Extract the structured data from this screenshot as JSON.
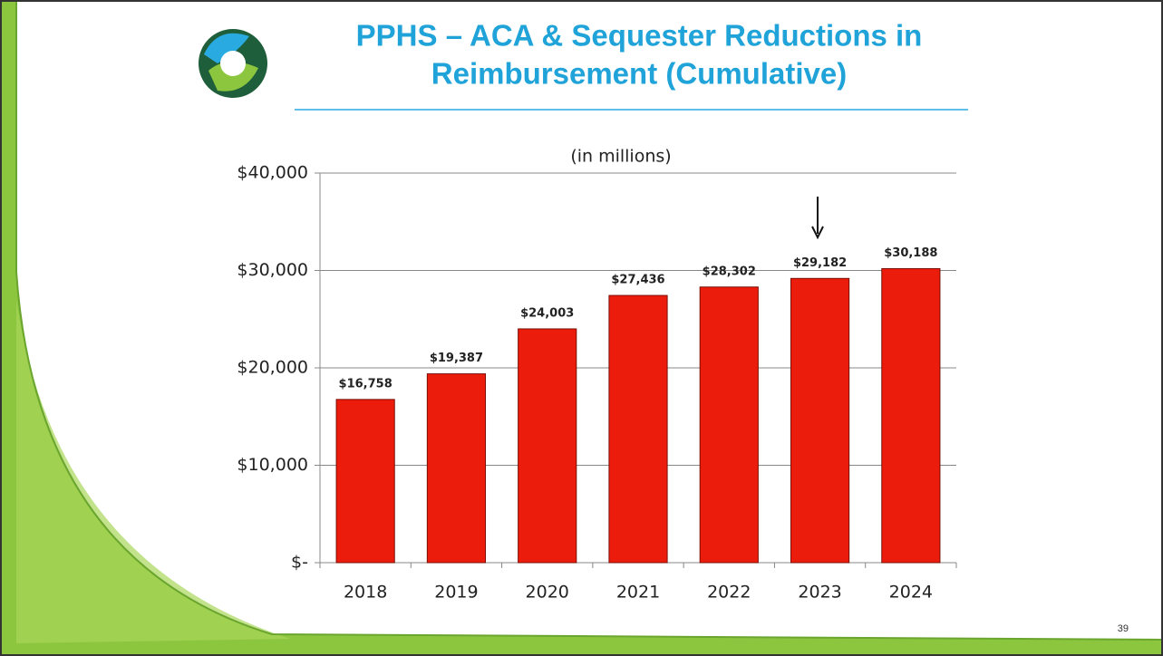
{
  "chart_data": {
    "type": "bar",
    "title": [
      "PPHS – ACA & Sequester Reductions in",
      "Reimbursement (Cumulative)"
    ],
    "subtitle": "(in millions)",
    "categories": [
      "2018",
      "2019",
      "2020",
      "2021",
      "2022",
      "2023",
      "2024"
    ],
    "values": [
      16758,
      19387,
      24003,
      27436,
      28302,
      29182,
      30188
    ],
    "value_labels": [
      "$16,758",
      "$19,387",
      "$24,003",
      "$27,436",
      "$28,302",
      "$29,182",
      "$30,188"
    ],
    "color": "#ec1c0c",
    "ylim": [
      0,
      40000
    ],
    "yticks": [
      {
        "value": 0,
        "label": "$-"
      },
      {
        "value": 10000,
        "label": "$10,000"
      },
      {
        "value": 20000,
        "label": "$20,000"
      },
      {
        "value": 30000,
        "label": "$30,000"
      },
      {
        "value": 40000,
        "label": "$40,000"
      }
    ],
    "grid": true
  },
  "page_number": 39
}
